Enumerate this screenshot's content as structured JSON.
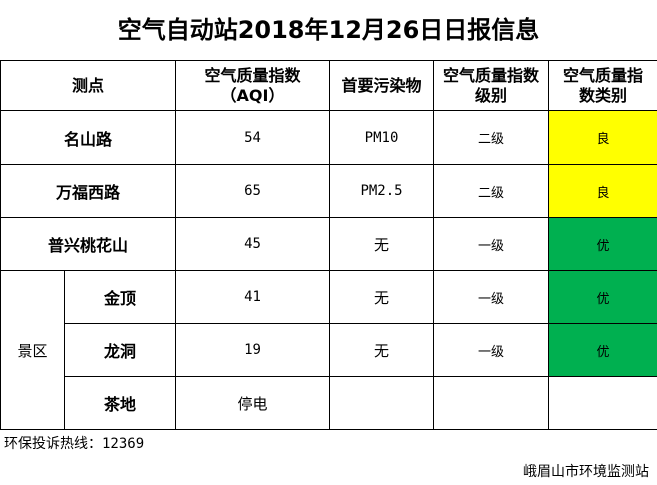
{
  "title": "空气自动站2018年12月26日日报信息",
  "table": {
    "headers": {
      "site": "测点",
      "aqi_line1": "空气质量指数",
      "aqi_line2": "（AQI）",
      "pollutant": "首要污染物",
      "level_line1": "空气质量指数",
      "level_line2": "级别",
      "category_line1": "空气质量指",
      "category_line2": "数类别"
    },
    "rows": [
      {
        "site": "名山路",
        "aqi": "54",
        "pollutant": "PM10",
        "level": "二级",
        "category": "良",
        "category_color": "#ffff00"
      },
      {
        "site": "万福西路",
        "aqi": "65",
        "pollutant": "PM2.5",
        "level": "二级",
        "category": "良",
        "category_color": "#ffff00"
      },
      {
        "site": "普兴桃花山",
        "aqi": "45",
        "pollutant": "无",
        "level": "一级",
        "category": "优",
        "category_color": "#00b050"
      }
    ],
    "scenic_group": "景区",
    "scenic_rows": [
      {
        "site": "金顶",
        "aqi": "41",
        "pollutant": "无",
        "level": "一级",
        "category": "优",
        "category_color": "#00b050"
      },
      {
        "site": "龙洞",
        "aqi": "19",
        "pollutant": "无",
        "level": "一级",
        "category": "优",
        "category_color": "#00b050"
      },
      {
        "site": "茶地",
        "aqi": "停电",
        "pollutant": "",
        "level": "",
        "category": ""
      }
    ]
  },
  "footer": {
    "hotline_label": "环保投诉热线：",
    "hotline_number": "12369",
    "station_name": "峨眉山市环境监测站"
  }
}
